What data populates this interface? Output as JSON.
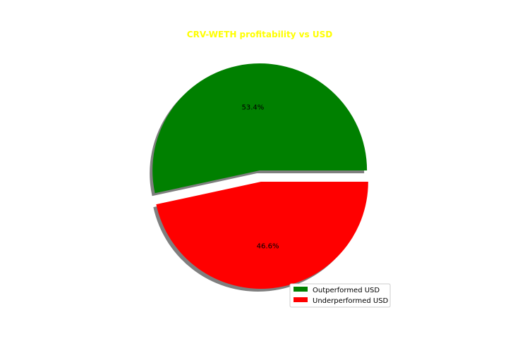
{
  "chart_data": {
    "type": "pie",
    "title": "CRV-WETH profitability vs USD",
    "title_color": "#ffff00",
    "slices": [
      {
        "label": "Outperformed USD",
        "value": 53.4,
        "pct_label": "53.4%",
        "color": "#008000",
        "exploded": true
      },
      {
        "label": "Underperformed USD",
        "value": 46.6,
        "pct_label": "46.6%",
        "color": "#ff0000",
        "exploded": true
      }
    ],
    "start_angle_deg": 0,
    "shadow": true,
    "legend": [
      "Outperformed USD",
      "Underperformed USD"
    ],
    "legend_location": "lower-right"
  }
}
